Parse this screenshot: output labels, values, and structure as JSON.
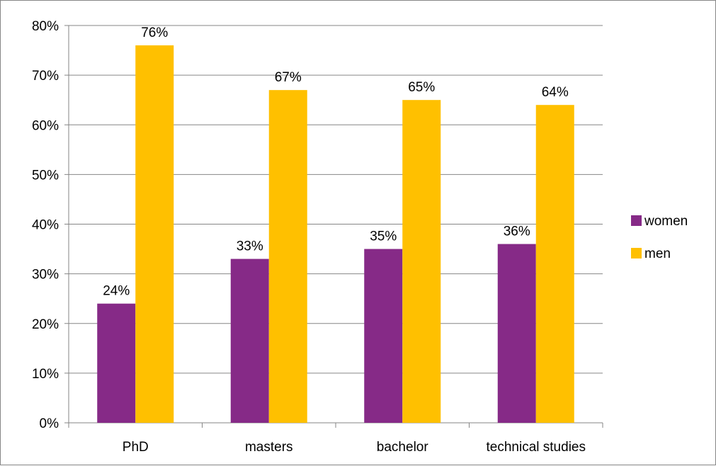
{
  "chart_data": {
    "type": "bar",
    "categories": [
      "PhD",
      "masters",
      "bachelor",
      "technical studies"
    ],
    "series": [
      {
        "name": "women",
        "values": [
          24,
          33,
          35,
          36
        ],
        "color": "#862A87"
      },
      {
        "name": "men",
        "values": [
          76,
          67,
          65,
          64
        ],
        "color": "#FFC000"
      }
    ],
    "value_format": "percent",
    "ylim": [
      0,
      80
    ],
    "yticks": [
      0,
      10,
      20,
      30,
      40,
      50,
      60,
      70,
      80
    ],
    "ytick_labels": [
      "0%",
      "10%",
      "20%",
      "30%",
      "40%",
      "50%",
      "60%",
      "70%",
      "80%"
    ],
    "data_labels": [
      [
        "24%",
        "33%",
        "35%",
        "36%"
      ],
      [
        "76%",
        "67%",
        "65%",
        "64%"
      ]
    ],
    "title": "",
    "xlabel": "",
    "ylabel": "",
    "grid": true,
    "legend": "right"
  }
}
